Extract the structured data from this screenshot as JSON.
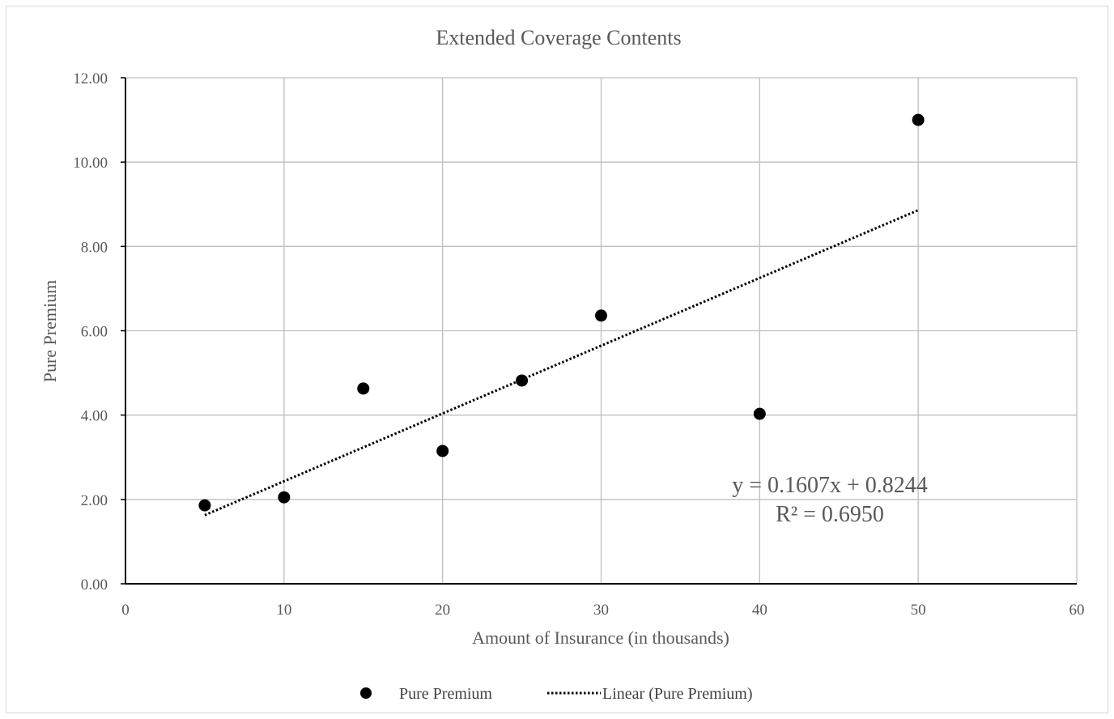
{
  "chart_data": {
    "type": "scatter",
    "title": "Extended Coverage Contents",
    "xlabel": "Amount of Insurance (in thousands)",
    "ylabel": "Pure Premium",
    "xlim": [
      0,
      60
    ],
    "ylim": [
      0,
      12
    ],
    "x_ticks": [
      "0",
      "10",
      "20",
      "30",
      "40",
      "50",
      "60"
    ],
    "y_ticks": [
      "0.00",
      "2.00",
      "4.00",
      "6.00",
      "8.00",
      "10.00",
      "12.00"
    ],
    "grid": true,
    "legend_position": "bottom",
    "series": [
      {
        "name": "Pure Premium",
        "marker": "circle",
        "color": "#000000",
        "x": [
          5,
          10,
          15,
          20,
          25,
          30,
          40,
          50
        ],
        "y": [
          1.86,
          2.05,
          4.63,
          3.15,
          4.82,
          6.36,
          4.03,
          11.0
        ]
      }
    ],
    "trendline": {
      "name": "Linear (Pure Premium)",
      "style": "dotted",
      "color": "#000000",
      "slope": 0.1607,
      "intercept": 0.8244,
      "x_range": [
        5,
        50
      ],
      "equation": "y = 0.1607x + 0.8244",
      "r_squared": "R² = 0.6950"
    }
  }
}
